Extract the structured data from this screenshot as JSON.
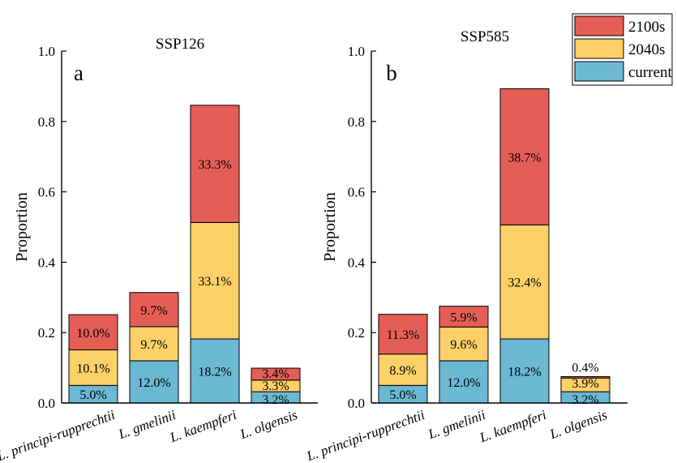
{
  "colors": {
    "current": "#6bb8d5",
    "2040s": "#fdd068",
    "2100s": "#e55e56"
  },
  "chart_data": [
    {
      "type": "bar",
      "stacked": true,
      "panel_label": "a",
      "title": "SSP126",
      "xlabel": "",
      "ylabel": "Proportion",
      "ylim": [
        0,
        1.0
      ],
      "yticks": [
        "0.0",
        "0.2",
        "0.4",
        "0.6",
        "0.8",
        "1.0"
      ],
      "categories": [
        "L. principi-rupprechtii",
        "L. gmelinii",
        "L. kaempferi",
        "L. olgensis"
      ],
      "series": [
        {
          "name": "current",
          "values": [
            0.05,
            0.12,
            0.182,
            0.032
          ],
          "labels": [
            "5.0%",
            "12.0%",
            "18.2%",
            "3.2%"
          ]
        },
        {
          "name": "2040s",
          "values": [
            0.101,
            0.097,
            0.331,
            0.033
          ],
          "labels": [
            "10.1%",
            "9.7%",
            "33.1%",
            "3.3%"
          ]
        },
        {
          "name": "2100s",
          "values": [
            0.1,
            0.097,
            0.333,
            0.034
          ],
          "labels": [
            "10.0%",
            "9.7%",
            "33.3%",
            "3.4%"
          ]
        }
      ]
    },
    {
      "type": "bar",
      "stacked": true,
      "panel_label": "b",
      "title": "SSP585",
      "xlabel": "",
      "ylabel": "Proportion",
      "ylim": [
        0,
        1.0
      ],
      "yticks": [
        "0.0",
        "0.2",
        "0.4",
        "0.6",
        "0.8",
        "1.0"
      ],
      "categories": [
        "L. principi-rupprechtii",
        "L. gmelinii",
        "L. kaempferi",
        "L. olgensis"
      ],
      "series": [
        {
          "name": "current",
          "values": [
            0.05,
            0.12,
            0.182,
            0.032
          ],
          "labels": [
            "5.0%",
            "12.0%",
            "18.2%",
            "3.2%"
          ]
        },
        {
          "name": "2040s",
          "values": [
            0.089,
            0.096,
            0.324,
            0.039
          ],
          "labels": [
            "8.9%",
            "9.6%",
            "32.4%",
            "3.9%"
          ]
        },
        {
          "name": "2100s",
          "values": [
            0.113,
            0.059,
            0.387,
            0.004
          ],
          "labels": [
            "11.3%",
            "5.9%",
            "38.7%",
            "0.4%"
          ]
        }
      ]
    }
  ],
  "legend": {
    "position": "top-right",
    "entries": [
      "2100s",
      "2040s",
      "current"
    ]
  }
}
